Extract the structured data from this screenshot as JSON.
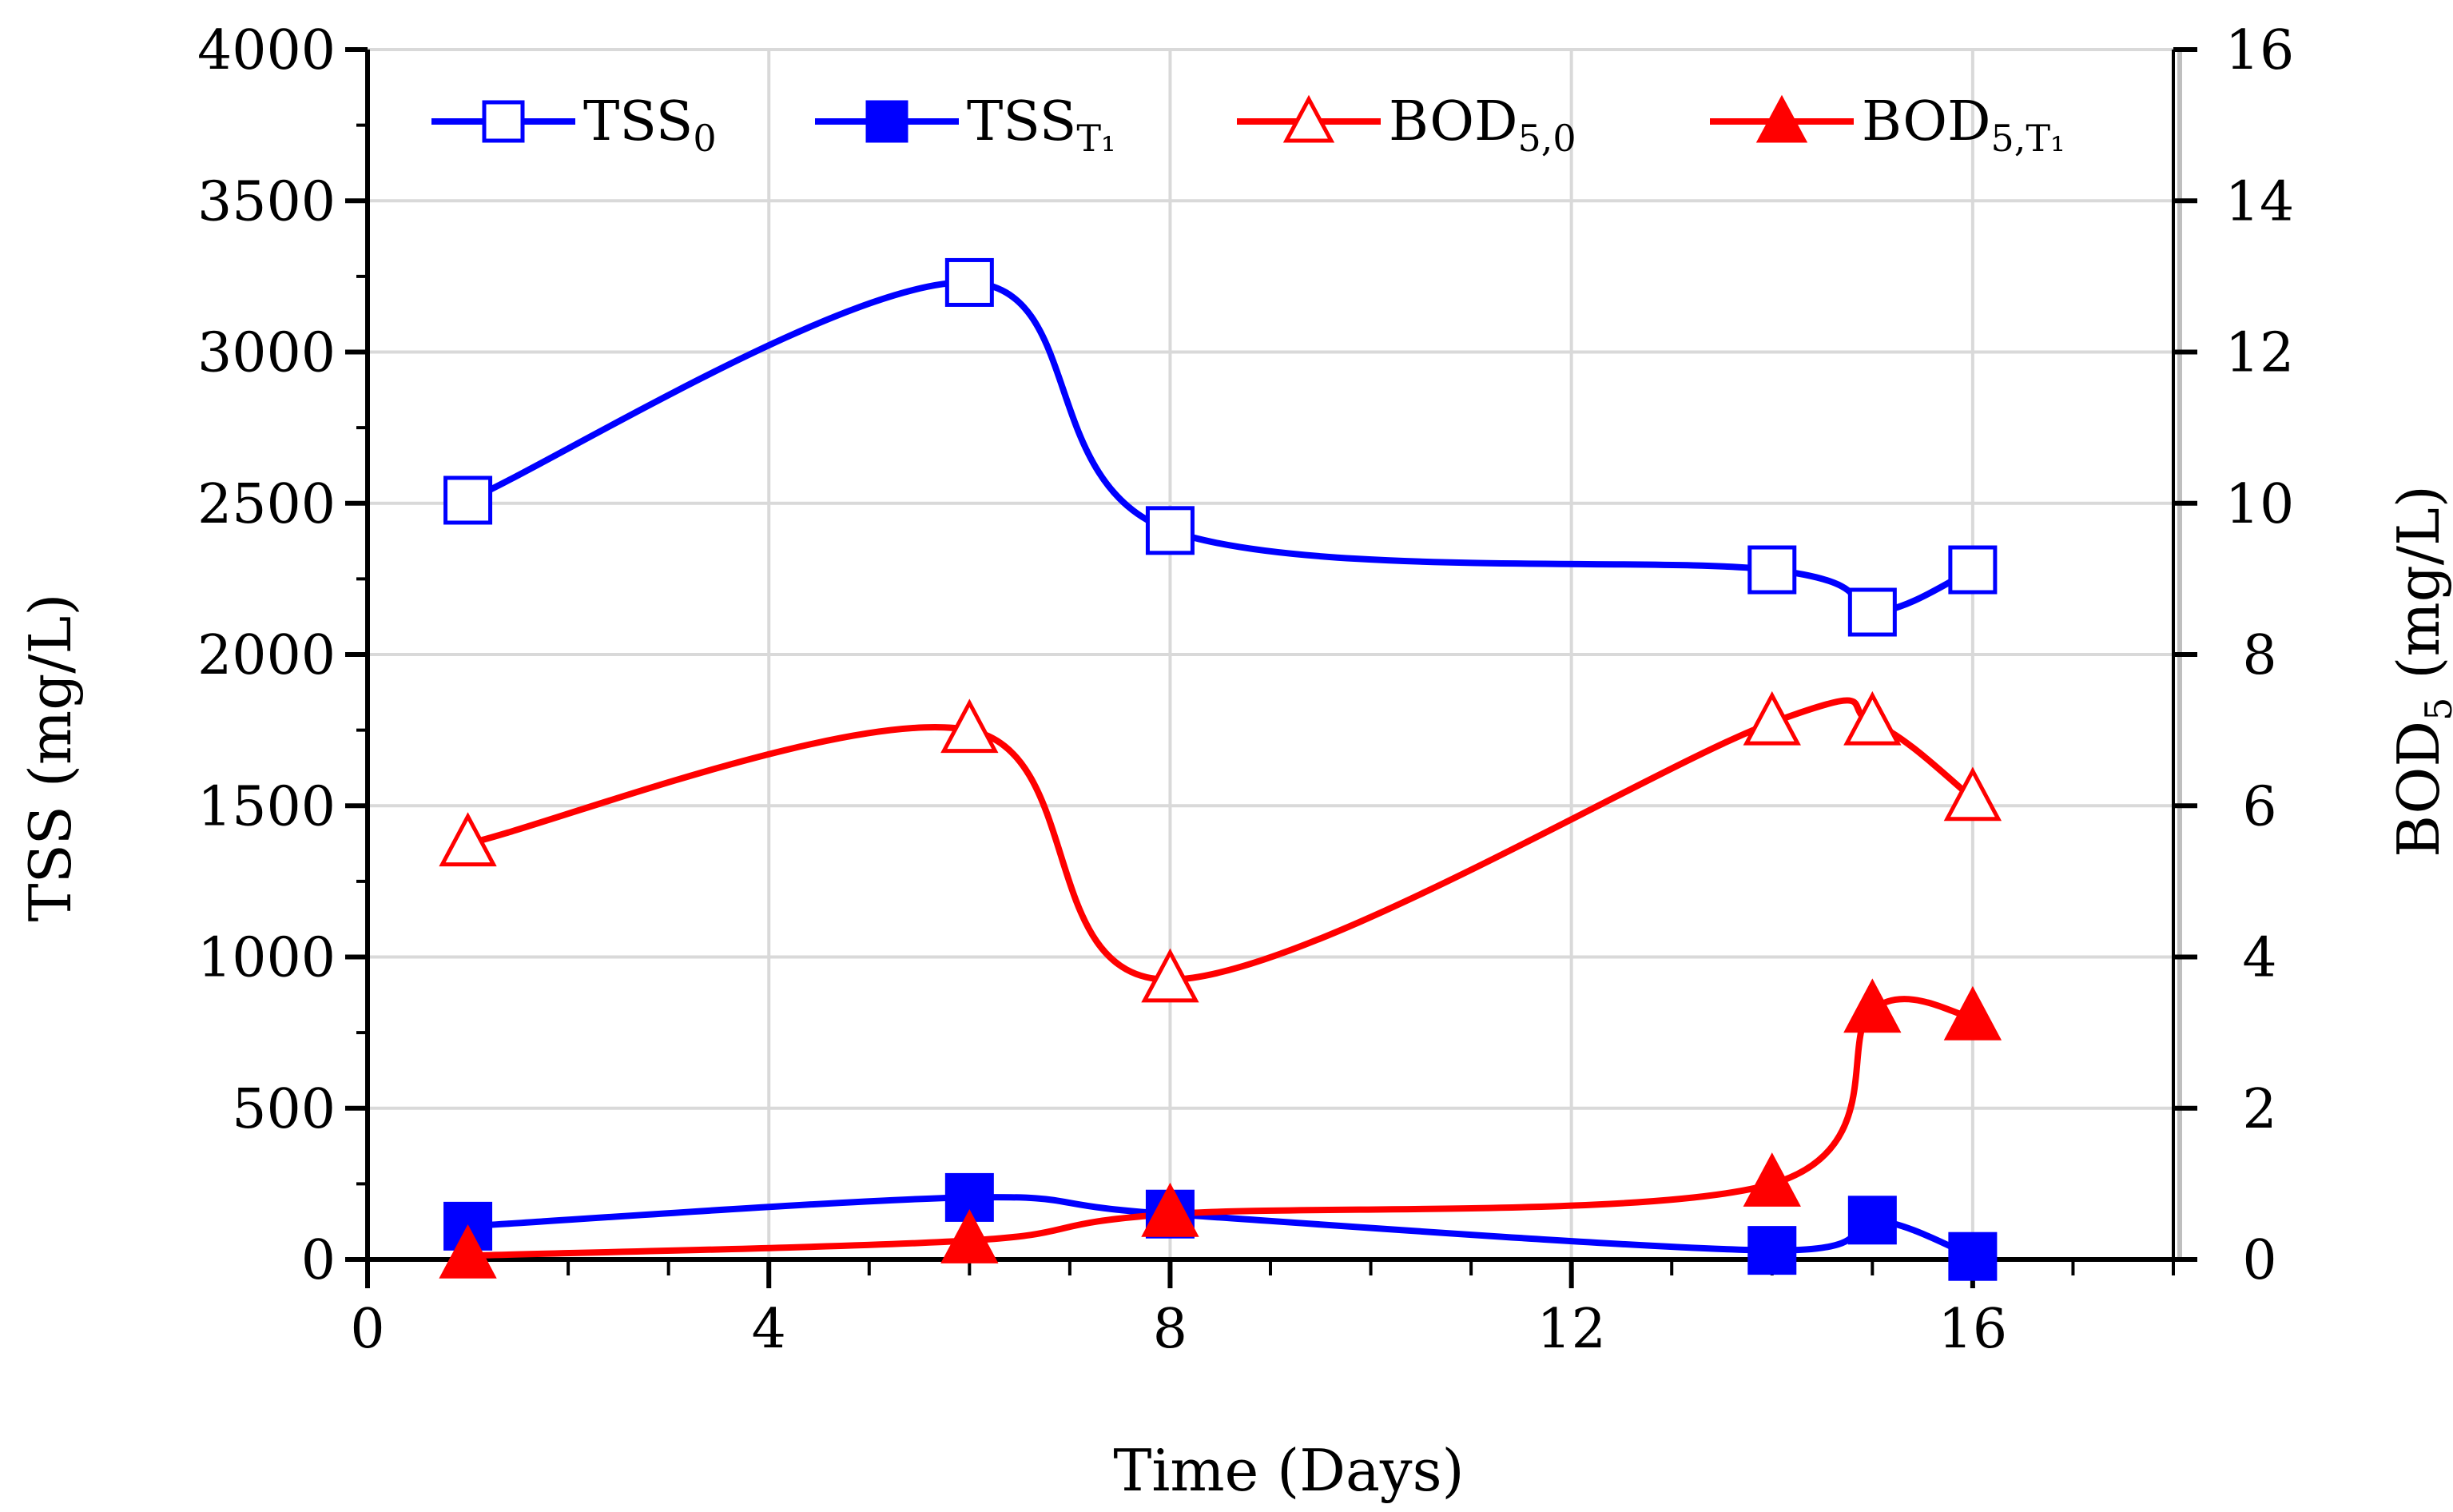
{
  "chart_data": {
    "type": "line",
    "title": "",
    "xlabel": "Time (Days)",
    "ylabel_left": "TSS (mg/L)",
    "ylabel_right_main": "BOD",
    "ylabel_right_sub": "5",
    "ylabel_right_rest": " (mg/L)",
    "xlim": [
      0,
      18
    ],
    "ylim_left": [
      0,
      4000
    ],
    "ylim_right": [
      0,
      16
    ],
    "x_ticks": [
      0,
      4,
      8,
      12,
      16
    ],
    "x_tick_labels": [
      "0",
      "4",
      "8",
      "12",
      "16"
    ],
    "y_left_ticks": [
      0,
      500,
      1000,
      1500,
      2000,
      2500,
      3000,
      3500,
      4000
    ],
    "y_left_tick_labels": [
      "0",
      "500",
      "1000",
      "1500",
      "2000",
      "2500",
      "3000",
      "3500",
      "4000"
    ],
    "y_right_ticks": [
      0,
      2,
      4,
      6,
      8,
      10,
      12,
      14,
      16
    ],
    "y_right_tick_labels": [
      "0",
      "2",
      "4",
      "6",
      "8",
      "10",
      "12",
      "14",
      "16"
    ],
    "grid": true,
    "legend_position": "top",
    "series": [
      {
        "id": "tss0",
        "name_main": "TSS",
        "name_sub": "0",
        "axis": "left",
        "color": "#0000ff",
        "marker": "square-open",
        "x": [
          1,
          6,
          8,
          14,
          15,
          16
        ],
        "y": [
          2510,
          3230,
          2410,
          2280,
          2140,
          2280
        ]
      },
      {
        "id": "tsst1",
        "name_main": "TSS",
        "name_sub": "T₁",
        "axis": "left",
        "color": "#0000ff",
        "marker": "square-filled",
        "x": [
          1,
          6,
          8,
          14,
          15,
          16
        ],
        "y": [
          110,
          205,
          150,
          30,
          130,
          10
        ]
      },
      {
        "id": "bod0",
        "name_main": "BOD",
        "name_sub": "5,0",
        "axis": "right",
        "color": "#ff0000",
        "marker": "triangle-open",
        "x": [
          1,
          6,
          8,
          14,
          15,
          16
        ],
        "y": [
          5.5,
          7.0,
          3.7,
          7.1,
          7.1,
          6.1
        ]
      },
      {
        "id": "bodt1",
        "name_main": "BOD",
        "name_sub": "5,T₁",
        "axis": "right",
        "color": "#ff0000",
        "marker": "triangle-filled",
        "x": [
          1,
          6,
          8,
          14,
          15,
          16
        ],
        "y": [
          0.05,
          0.25,
          0.6,
          1.0,
          3.3,
          3.2
        ]
      }
    ]
  }
}
